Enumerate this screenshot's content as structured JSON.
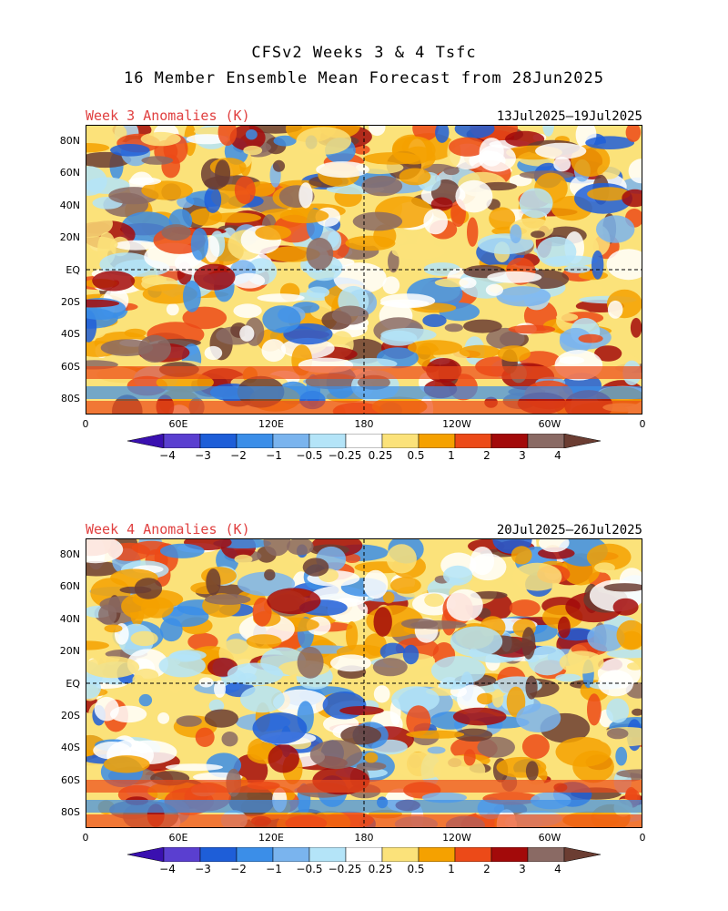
{
  "header": {
    "title_line1": "CFSv2 Weeks 3 & 4 Tsfc",
    "title_line2": "16 Member Ensemble Mean Forecast from 28Jun2025"
  },
  "panels": [
    {
      "label": "Week 3 Anomalies (K)",
      "dates": "13Jul2025—19Jul2025"
    },
    {
      "label": "Week 4 Anomalies (K)",
      "dates": "20Jul2025—26Jul2025"
    }
  ],
  "axes": {
    "lat_labels": [
      "80N",
      "60N",
      "40N",
      "20N",
      "EQ",
      "20S",
      "40S",
      "60S",
      "80S"
    ],
    "lon_labels": [
      "0",
      "60E",
      "120E",
      "180",
      "120W",
      "60W",
      "0"
    ]
  },
  "colorbar": {
    "levels": [
      "−4",
      "−3",
      "−2",
      "−1",
      "−0.5",
      "−0.25",
      "0.25",
      "0.5",
      "1",
      "2",
      "3",
      "4"
    ],
    "colors": [
      "#3a10b0",
      "#5a3fd0",
      "#1e5ed8",
      "#3b8ee8",
      "#7ab4ee",
      "#b4e4f8",
      "#ffffff",
      "#fbe27a",
      "#f5a100",
      "#ec4a18",
      "#a30a0a",
      "#8a6a64",
      "#6b3d32"
    ]
  },
  "colors": {
    "title_red": "#e04040",
    "zero_line": "#000000"
  }
}
